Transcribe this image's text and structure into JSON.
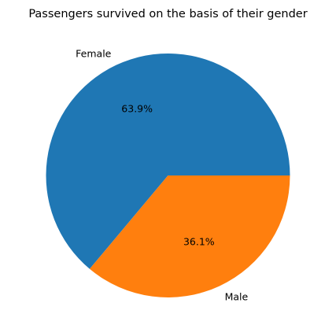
{
  "chart_data": {
    "type": "pie",
    "title": "Passengers survived on the basis of their gender",
    "labels": [
      "Female",
      "Male"
    ],
    "values": [
      63.9,
      36.1
    ],
    "percent_labels": [
      "63.9%",
      "36.1%"
    ],
    "colors": [
      "#1f77b4",
      "#ff7f0e"
    ],
    "start_angle_deg": 0,
    "direction": "counterclockwise"
  }
}
